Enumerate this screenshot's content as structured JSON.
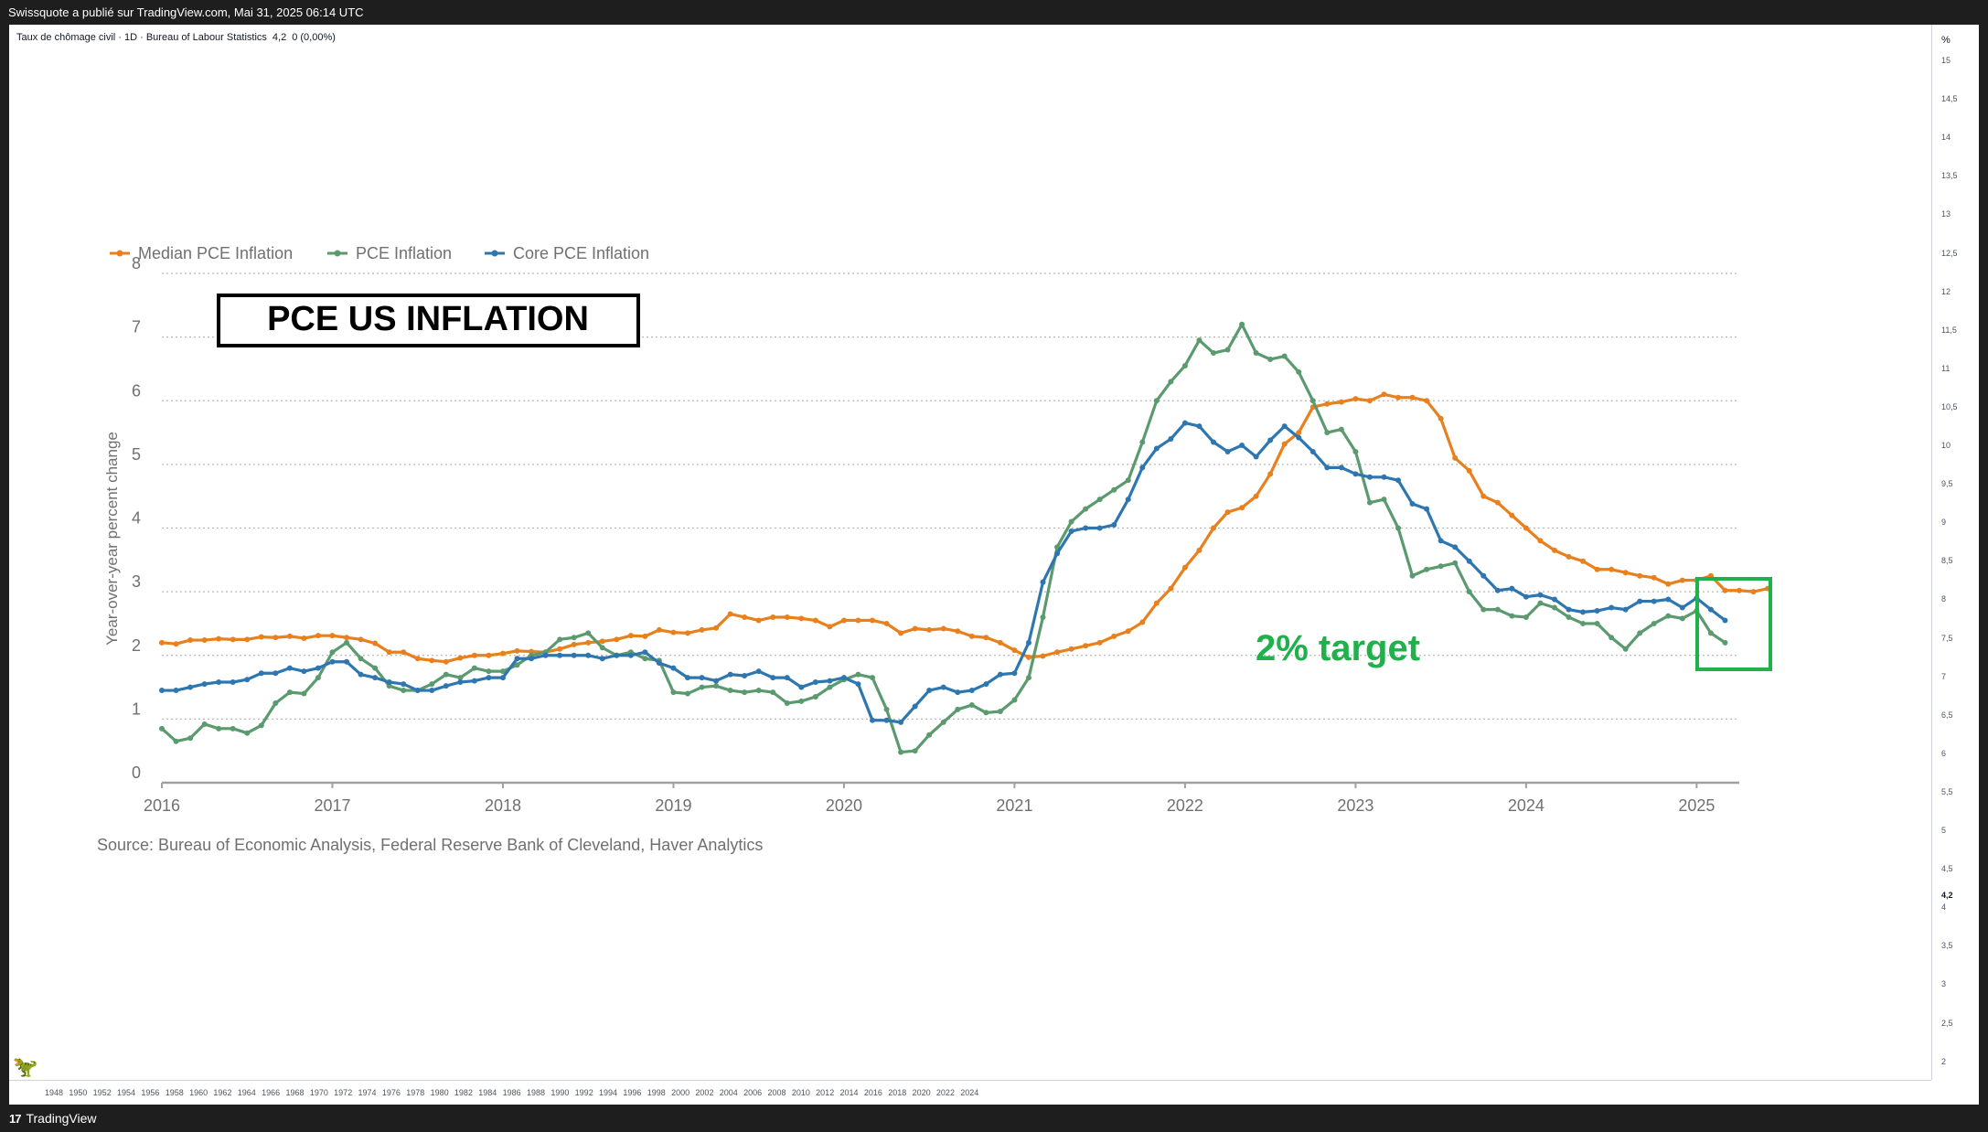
{
  "header": {
    "published_line": "Swissquote a publié sur TradingView.com, Mai 31, 2025 06:14 UTC"
  },
  "symbol_legend": {
    "name": "Taux de chômage civil · 1D · Bureau of Labour Statistics",
    "value": "4,2",
    "change": "0 (0,00%)"
  },
  "right_axis": {
    "unit": "%",
    "ticks": [
      "15",
      "14,5",
      "14",
      "13,5",
      "13",
      "12,5",
      "12",
      "11,5",
      "11",
      "10,5",
      "10",
      "9,5",
      "9",
      "8,5",
      "8",
      "7,5",
      "7",
      "6,5",
      "6",
      "5,5",
      "5",
      "4,5",
      "4",
      "3,5",
      "3",
      "2,5",
      "2"
    ],
    "current_label": "4,2"
  },
  "bottom_axis": {
    "ticks": [
      "1948",
      "1950",
      "1952",
      "1954",
      "1956",
      "1958",
      "1960",
      "1962",
      "1964",
      "1966",
      "1968",
      "1970",
      "1972",
      "1974",
      "1976",
      "1978",
      "1980",
      "1982",
      "1984",
      "1986",
      "1988",
      "1990",
      "1992",
      "1994",
      "1996",
      "1998",
      "2000",
      "2002",
      "2004",
      "2006",
      "2008",
      "2010",
      "2012",
      "2014",
      "2016",
      "2018",
      "2020",
      "2022",
      "2024"
    ]
  },
  "footer": {
    "brand": "TradingView",
    "brand_mark": "17"
  },
  "annotations": {
    "title_box": "PCE US INFLATION",
    "target_label": "2% target"
  },
  "colors": {
    "median": "#e8801e",
    "pce": "#5b9a6e",
    "core": "#2e76b0",
    "target_box": "#1fb14a"
  },
  "chart_data": {
    "type": "line",
    "ylabel": "Year-over-year percent change",
    "ylim": [
      0,
      8
    ],
    "yticks": [
      "0",
      "1",
      "2",
      "3",
      "4",
      "5",
      "6",
      "7",
      "8"
    ],
    "xlim": [
      2016,
      2025.25
    ],
    "xticks": [
      "2016",
      "2017",
      "2018",
      "2019",
      "2020",
      "2021",
      "2022",
      "2023",
      "2024",
      "2025"
    ],
    "legend_position": "top-left",
    "grid": "horizontal dotted",
    "source": "Source: Bureau of Economic Analysis, Federal Reserve Bank of Cleveland, Haver Analytics",
    "x_start": 2016.0,
    "x_step_months": 1,
    "series": [
      {
        "name": "Median PCE Inflation",
        "color": "#e8801e",
        "values": [
          2.2,
          2.18,
          2.24,
          2.24,
          2.26,
          2.25,
          2.25,
          2.29,
          2.28,
          2.3,
          2.27,
          2.31,
          2.31,
          2.28,
          2.25,
          2.19,
          2.05,
          2.05,
          1.95,
          1.92,
          1.9,
          1.96,
          2.0,
          2.0,
          2.03,
          2.07,
          2.06,
          2.05,
          2.1,
          2.17,
          2.2,
          2.22,
          2.25,
          2.31,
          2.3,
          2.4,
          2.36,
          2.35,
          2.4,
          2.43,
          2.65,
          2.6,
          2.55,
          2.6,
          2.6,
          2.58,
          2.55,
          2.45,
          2.55,
          2.55,
          2.55,
          2.5,
          2.35,
          2.42,
          2.4,
          2.42,
          2.38,
          2.3,
          2.28,
          2.2,
          2.08,
          1.97,
          1.99,
          2.05,
          2.1,
          2.15,
          2.2,
          2.3,
          2.38,
          2.52,
          2.82,
          3.05,
          3.38,
          3.65,
          4.0,
          4.25,
          4.32,
          4.5,
          4.85,
          5.32,
          5.5,
          5.9,
          5.95,
          5.98,
          6.03,
          6.0,
          6.1,
          6.05,
          6.05,
          6.0,
          5.72,
          5.1,
          4.9,
          4.5,
          4.4,
          4.2,
          4.0,
          3.8,
          3.65,
          3.55,
          3.48,
          3.35,
          3.35,
          3.3,
          3.25,
          3.22,
          3.12,
          3.18,
          3.18,
          3.25,
          3.02,
          3.02,
          3.0,
          3.05
        ]
      },
      {
        "name": "PCE Inflation",
        "color": "#5b9a6e",
        "values": [
          0.85,
          0.65,
          0.7,
          0.92,
          0.85,
          0.85,
          0.78,
          0.9,
          1.25,
          1.42,
          1.4,
          1.65,
          2.05,
          2.2,
          1.95,
          1.8,
          1.52,
          1.45,
          1.45,
          1.55,
          1.7,
          1.65,
          1.8,
          1.75,
          1.75,
          1.85,
          2.0,
          2.05,
          2.25,
          2.28,
          2.35,
          2.12,
          2.0,
          2.05,
          1.95,
          1.92,
          1.42,
          1.4,
          1.5,
          1.52,
          1.45,
          1.42,
          1.45,
          1.42,
          1.25,
          1.28,
          1.35,
          1.5,
          1.62,
          1.7,
          1.65,
          1.15,
          0.48,
          0.5,
          0.75,
          0.95,
          1.15,
          1.22,
          1.1,
          1.12,
          1.3,
          1.65,
          2.6,
          3.7,
          4.1,
          4.3,
          4.45,
          4.6,
          4.75,
          5.35,
          6.0,
          6.3,
          6.55,
          6.95,
          6.75,
          6.8,
          7.2,
          6.75,
          6.65,
          6.7,
          6.45,
          6.0,
          5.5,
          5.55,
          5.2,
          4.4,
          4.45,
          4.0,
          3.25,
          3.35,
          3.4,
          3.45,
          3.0,
          2.72,
          2.72,
          2.62,
          2.6,
          2.82,
          2.75,
          2.6,
          2.5,
          2.5,
          2.28,
          2.1,
          2.35,
          2.5,
          2.62,
          2.58,
          2.7,
          2.35,
          2.2
        ]
      },
      {
        "name": "Core PCE Inflation",
        "color": "#2e76b0",
        "values": [
          1.45,
          1.45,
          1.5,
          1.55,
          1.58,
          1.58,
          1.62,
          1.72,
          1.72,
          1.8,
          1.75,
          1.8,
          1.9,
          1.9,
          1.7,
          1.65,
          1.58,
          1.55,
          1.45,
          1.45,
          1.52,
          1.58,
          1.6,
          1.65,
          1.65,
          1.95,
          1.95,
          2.0,
          2.0,
          2.0,
          2.0,
          1.95,
          2.0,
          2.0,
          2.05,
          1.88,
          1.8,
          1.65,
          1.65,
          1.6,
          1.7,
          1.68,
          1.75,
          1.65,
          1.65,
          1.5,
          1.58,
          1.6,
          1.65,
          1.55,
          0.98,
          0.98,
          0.95,
          1.2,
          1.45,
          1.5,
          1.42,
          1.45,
          1.55,
          1.7,
          1.72,
          2.2,
          3.15,
          3.6,
          3.95,
          4.0,
          4.0,
          4.05,
          4.45,
          4.95,
          5.25,
          5.4,
          5.65,
          5.6,
          5.35,
          5.2,
          5.3,
          5.12,
          5.38,
          5.6,
          5.42,
          5.2,
          4.95,
          4.95,
          4.85,
          4.8,
          4.8,
          4.75,
          4.38,
          4.3,
          3.8,
          3.7,
          3.48,
          3.25,
          3.02,
          3.05,
          2.92,
          2.95,
          2.88,
          2.72,
          2.68,
          2.7,
          2.75,
          2.72,
          2.85,
          2.85,
          2.88,
          2.75,
          2.9,
          2.72,
          2.55
        ]
      }
    ]
  }
}
